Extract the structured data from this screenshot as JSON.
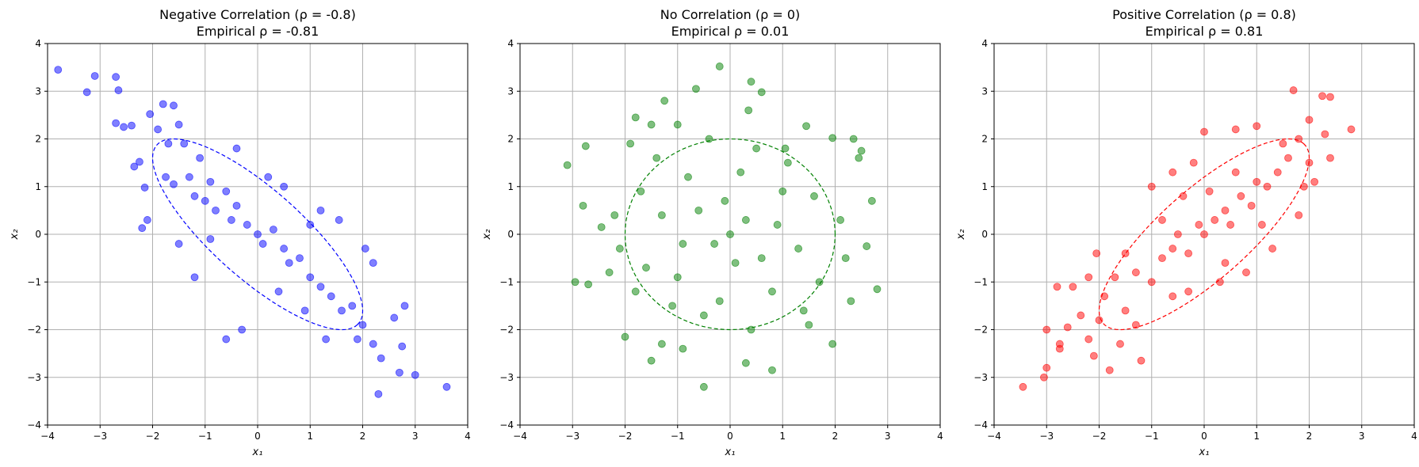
{
  "chart_data": [
    {
      "type": "scatter",
      "title_line1": "Negative Correlation (ρ = -0.8)",
      "title_line2": "Empirical ρ = -0.81",
      "xlabel": "x₁",
      "ylabel": "x₂",
      "xlim": [
        -4,
        4
      ],
      "ylim": [
        -4,
        4
      ],
      "xticks": [
        "−4",
        "−3",
        "−2",
        "−1",
        "0",
        "1",
        "2",
        "3",
        "4"
      ],
      "yticks": [
        "−4",
        "−3",
        "−2",
        "−1",
        "0",
        "1",
        "2",
        "3",
        "4"
      ],
      "grid": true,
      "color": "#0000ff",
      "rho": -0.8,
      "ellipse": {
        "center": [
          0,
          0
        ],
        "std_scale": 2,
        "style": "dashed"
      },
      "points": [
        [
          -3.8,
          3.45
        ],
        [
          -3.25,
          2.98
        ],
        [
          -3.1,
          3.32
        ],
        [
          -2.7,
          3.3
        ],
        [
          -2.65,
          3.02
        ],
        [
          -2.7,
          2.33
        ],
        [
          -2.55,
          2.25
        ],
        [
          -2.4,
          2.28
        ],
        [
          -2.35,
          1.42
        ],
        [
          -2.25,
          1.52
        ],
        [
          -2.15,
          0.98
        ],
        [
          -2.2,
          0.13
        ],
        [
          -2.1,
          0.3
        ],
        [
          -2.05,
          2.52
        ],
        [
          -1.9,
          2.2
        ],
        [
          -1.8,
          2.73
        ],
        [
          -1.6,
          2.7
        ],
        [
          -1.5,
          2.3
        ],
        [
          -1.7,
          1.9
        ],
        [
          -1.4,
          1.9
        ],
        [
          -1.75,
          1.2
        ],
        [
          -1.6,
          1.05
        ],
        [
          -1.3,
          1.2
        ],
        [
          -1.1,
          1.6
        ],
        [
          -1.2,
          0.8
        ],
        [
          -1.0,
          0.7
        ],
        [
          -0.9,
          1.1
        ],
        [
          -0.8,
          0.5
        ],
        [
          -0.6,
          0.9
        ],
        [
          -0.5,
          0.3
        ],
        [
          -0.4,
          0.6
        ],
        [
          -0.2,
          0.2
        ],
        [
          0.0,
          0.0
        ],
        [
          0.1,
          -0.2
        ],
        [
          0.3,
          0.1
        ],
        [
          0.5,
          -0.3
        ],
        [
          0.6,
          -0.6
        ],
        [
          0.8,
          -0.5
        ],
        [
          1.0,
          -0.9
        ],
        [
          1.2,
          -1.1
        ],
        [
          1.4,
          -1.3
        ],
        [
          1.6,
          -1.6
        ],
        [
          1.8,
          -1.5
        ],
        [
          2.0,
          -1.9
        ],
        [
          2.2,
          -2.3
        ],
        [
          2.35,
          -2.6
        ],
        [
          2.3,
          -3.35
        ],
        [
          2.7,
          -2.9
        ],
        [
          3.0,
          -2.95
        ],
        [
          3.6,
          -3.2
        ],
        [
          2.8,
          -1.5
        ],
        [
          2.6,
          -1.75
        ],
        [
          2.75,
          -2.35
        ],
        [
          2.05,
          -0.3
        ],
        [
          2.2,
          -0.6
        ],
        [
          1.55,
          0.3
        ],
        [
          1.2,
          0.5
        ],
        [
          -0.3,
          -2.0
        ],
        [
          -0.6,
          -2.2
        ],
        [
          -1.2,
          -0.9
        ],
        [
          -1.5,
          -0.2
        ],
        [
          -0.4,
          1.8
        ],
        [
          0.2,
          1.2
        ],
        [
          0.5,
          1.0
        ],
        [
          1.0,
          0.2
        ],
        [
          -0.9,
          -0.1
        ],
        [
          0.4,
          -1.2
        ],
        [
          0.9,
          -1.6
        ],
        [
          1.3,
          -2.2
        ],
        [
          1.9,
          -2.2
        ]
      ]
    },
    {
      "type": "scatter",
      "title_line1": "No Correlation (ρ = 0)",
      "title_line2": "Empirical ρ = 0.01",
      "xlabel": "x₁",
      "ylabel": "x₂",
      "xlim": [
        -4,
        4
      ],
      "ylim": [
        -4,
        4
      ],
      "xticks": [
        "−4",
        "−3",
        "−2",
        "−1",
        "0",
        "1",
        "2",
        "3",
        "4"
      ],
      "yticks": [
        "−4",
        "−3",
        "−2",
        "−1",
        "0",
        "1",
        "2",
        "3",
        "4"
      ],
      "grid": true,
      "color": "#008000",
      "rho": 0,
      "ellipse": {
        "center": [
          0,
          0
        ],
        "std_scale": 2,
        "style": "dashed"
      },
      "points": [
        [
          -3.1,
          1.45
        ],
        [
          -2.75,
          1.85
        ],
        [
          -2.95,
          -1.0
        ],
        [
          -2.8,
          0.6
        ],
        [
          -2.7,
          -1.05
        ],
        [
          -2.45,
          0.15
        ],
        [
          -2.2,
          0.4
        ],
        [
          -2.0,
          -2.15
        ],
        [
          -1.9,
          1.9
        ],
        [
          -1.8,
          2.45
        ],
        [
          -1.5,
          2.3
        ],
        [
          -1.25,
          2.8
        ],
        [
          -1.0,
          2.3
        ],
        [
          -0.65,
          3.05
        ],
        [
          -0.2,
          3.52
        ],
        [
          0.4,
          3.2
        ],
        [
          0.6,
          2.98
        ],
        [
          0.35,
          2.6
        ],
        [
          1.05,
          1.8
        ],
        [
          1.45,
          2.27
        ],
        [
          1.95,
          2.02
        ],
        [
          2.35,
          2.0
        ],
        [
          2.5,
          1.75
        ],
        [
          2.45,
          1.6
        ],
        [
          2.7,
          0.7
        ],
        [
          2.6,
          -0.25
        ],
        [
          2.8,
          -1.15
        ],
        [
          2.2,
          -0.5
        ],
        [
          1.95,
          -2.3
        ],
        [
          1.5,
          -1.9
        ],
        [
          0.8,
          -2.85
        ],
        [
          0.3,
          -2.7
        ],
        [
          -0.5,
          -3.2
        ],
        [
          -1.5,
          -2.65
        ],
        [
          -1.3,
          -2.3
        ],
        [
          -0.9,
          -2.4
        ],
        [
          -1.8,
          -1.2
        ],
        [
          -2.3,
          -0.8
        ],
        [
          0.0,
          0.0
        ],
        [
          0.3,
          0.3
        ],
        [
          -0.3,
          -0.2
        ],
        [
          0.6,
          -0.5
        ],
        [
          -0.6,
          0.5
        ],
        [
          1.0,
          0.9
        ],
        [
          -1.0,
          -0.9
        ],
        [
          1.3,
          -0.3
        ],
        [
          -1.3,
          0.4
        ],
        [
          0.2,
          1.3
        ],
        [
          -0.2,
          -1.4
        ],
        [
          0.8,
          -1.2
        ],
        [
          -0.8,
          1.2
        ],
        [
          1.6,
          0.8
        ],
        [
          -1.6,
          -0.7
        ],
        [
          0.5,
          1.8
        ],
        [
          -0.5,
          -1.7
        ],
        [
          1.7,
          -1.0
        ],
        [
          -1.7,
          0.9
        ],
        [
          0.1,
          -0.6
        ],
        [
          -0.1,
          0.7
        ],
        [
          2.1,
          0.3
        ],
        [
          -2.1,
          -0.3
        ],
        [
          1.1,
          1.5
        ],
        [
          -1.1,
          -1.5
        ],
        [
          0.9,
          0.2
        ],
        [
          -0.9,
          -0.2
        ],
        [
          0.4,
          -2.0
        ],
        [
          -0.4,
          2.0
        ],
        [
          1.4,
          -1.6
        ],
        [
          -1.4,
          1.6
        ],
        [
          2.3,
          -1.4
        ]
      ]
    },
    {
      "type": "scatter",
      "title_line1": "Positive Correlation (ρ = 0.8)",
      "title_line2": "Empirical ρ = 0.81",
      "xlabel": "x₁",
      "ylabel": "x₂",
      "xlim": [
        -4,
        4
      ],
      "ylim": [
        -4,
        4
      ],
      "xticks": [
        "−4",
        "−3",
        "−2",
        "−1",
        "0",
        "1",
        "2",
        "3",
        "4"
      ],
      "yticks": [
        "−4",
        "−3",
        "−2",
        "−1",
        "0",
        "1",
        "2",
        "3",
        "4"
      ],
      "grid": true,
      "color": "#ff0000",
      "rho": 0.8,
      "ellipse": {
        "center": [
          0,
          0
        ],
        "std_scale": 2,
        "style": "dashed"
      },
      "points": [
        [
          -3.45,
          -3.2
        ],
        [
          -3.05,
          -3.0
        ],
        [
          -3.0,
          -2.8
        ],
        [
          -3.0,
          -2.0
        ],
        [
          -2.75,
          -2.3
        ],
        [
          -2.75,
          -2.4
        ],
        [
          -2.6,
          -1.95
        ],
        [
          -2.5,
          -1.1
        ],
        [
          -2.8,
          -1.1
        ],
        [
          -2.35,
          -1.7
        ],
        [
          -2.2,
          -2.2
        ],
        [
          -2.1,
          -2.55
        ],
        [
          -2.2,
          -0.9
        ],
        [
          -2.05,
          -0.4
        ],
        [
          -1.9,
          -1.3
        ],
        [
          -1.8,
          -2.85
        ],
        [
          -1.6,
          -2.3
        ],
        [
          -1.5,
          -1.6
        ],
        [
          -1.2,
          -2.65
        ],
        [
          -1.3,
          -0.8
        ],
        [
          -1.0,
          -1.0
        ],
        [
          -0.8,
          -0.5
        ],
        [
          -0.6,
          -0.3
        ],
        [
          -0.5,
          0.0
        ],
        [
          -0.3,
          -0.4
        ],
        [
          -0.1,
          0.2
        ],
        [
          0.0,
          0.0
        ],
        [
          0.2,
          0.3
        ],
        [
          0.4,
          0.5
        ],
        [
          0.5,
          0.2
        ],
        [
          0.7,
          0.8
        ],
        [
          0.9,
          0.6
        ],
        [
          1.0,
          1.1
        ],
        [
          1.2,
          1.0
        ],
        [
          1.4,
          1.3
        ],
        [
          1.6,
          1.6
        ],
        [
          1.8,
          2.0
        ],
        [
          1.7,
          3.02
        ],
        [
          2.25,
          2.9
        ],
        [
          2.4,
          2.88
        ],
        [
          2.0,
          2.4
        ],
        [
          2.3,
          2.1
        ],
        [
          2.8,
          2.2
        ],
        [
          2.4,
          1.6
        ],
        [
          2.1,
          1.1
        ],
        [
          1.9,
          1.0
        ],
        [
          1.0,
          2.27
        ],
        [
          0.6,
          2.2
        ],
        [
          0.0,
          2.15
        ],
        [
          -0.2,
          1.5
        ],
        [
          -0.6,
          1.3
        ],
        [
          -1.0,
          1.0
        ],
        [
          -0.6,
          -1.3
        ],
        [
          0.3,
          -1.0
        ],
        [
          0.8,
          -0.8
        ],
        [
          1.3,
          -0.3
        ],
        [
          1.8,
          0.4
        ],
        [
          -1.3,
          -1.9
        ],
        [
          -0.3,
          -1.2
        ],
        [
          0.4,
          -0.6
        ],
        [
          -0.8,
          0.3
        ],
        [
          -1.5,
          -0.4
        ],
        [
          0.6,
          1.3
        ],
        [
          1.5,
          1.9
        ],
        [
          -2.0,
          -1.8
        ],
        [
          0.1,
          0.9
        ],
        [
          1.1,
          0.2
        ],
        [
          -0.4,
          0.8
        ],
        [
          2.0,
          1.5
        ],
        [
          -1.7,
          -0.9
        ]
      ]
    }
  ]
}
